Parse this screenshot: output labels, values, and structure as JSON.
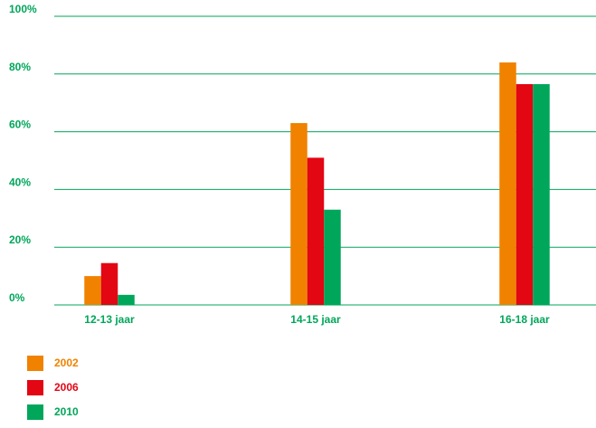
{
  "chart_data": {
    "type": "bar",
    "title": "",
    "xlabel": "",
    "ylabel": "",
    "categories": [
      "12-13 jaar",
      "14-15 jaar",
      "16-18 jaar"
    ],
    "series": [
      {
        "name": "2002",
        "color": "#F08200",
        "values": [
          10,
          63,
          84
        ]
      },
      {
        "name": "2006",
        "color": "#E30613",
        "values": [
          14.5,
          51,
          76.5
        ]
      },
      {
        "name": "2010",
        "color": "#00A65A",
        "values": [
          3.5,
          33,
          76.5
        ]
      }
    ],
    "ylim": [
      0,
      100
    ],
    "yticks": [
      0,
      20,
      40,
      60,
      80,
      100
    ],
    "ytick_labels": [
      "0%",
      "20%",
      "40%",
      "60%",
      "80%",
      "100%"
    ],
    "grid": true,
    "legend_position": "bottom-left",
    "axis_color": "#00A65A"
  }
}
